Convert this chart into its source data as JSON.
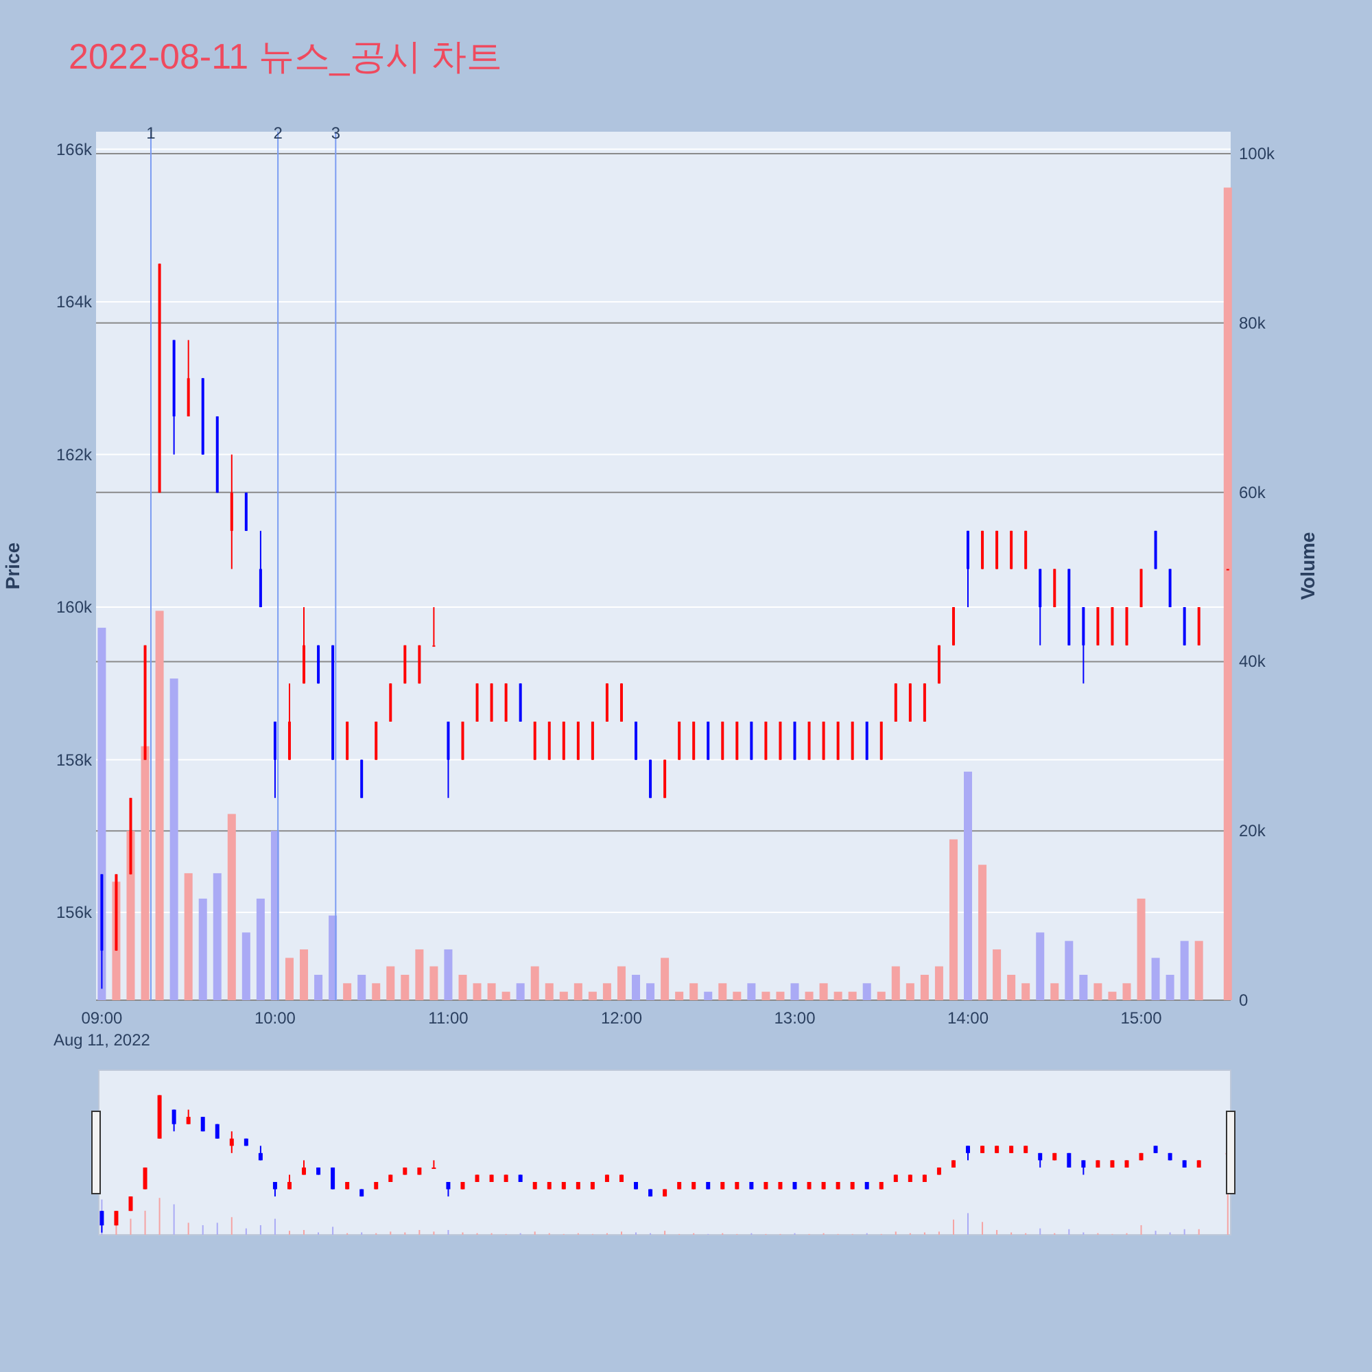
{
  "chart_data": {
    "type": "candlestick",
    "title": "2022-08-11 뉴스_공시 차트",
    "ylabel": "Price",
    "y2label": "Volume",
    "x": [
      "2022-08-11T09:00",
      "2022-08-11T09:05",
      "2022-08-11T09:10",
      "2022-08-11T09:15",
      "2022-08-11T09:20",
      "2022-08-11T09:25",
      "2022-08-11T09:30",
      "2022-08-11T09:35",
      "2022-08-11T09:40",
      "2022-08-11T09:45",
      "2022-08-11T09:50",
      "2022-08-11T09:55",
      "2022-08-11T10:00",
      "2022-08-11T10:05",
      "2022-08-11T10:10",
      "2022-08-11T10:15",
      "2022-08-11T10:20",
      "2022-08-11T10:25",
      "2022-08-11T10:30",
      "2022-08-11T10:35",
      "2022-08-11T10:40",
      "2022-08-11T10:45",
      "2022-08-11T10:50",
      "2022-08-11T10:55",
      "2022-08-11T11:00",
      "2022-08-11T11:05",
      "2022-08-11T11:10",
      "2022-08-11T11:15",
      "2022-08-11T11:20",
      "2022-08-11T11:25",
      "2022-08-11T11:30",
      "2022-08-11T11:35",
      "2022-08-11T11:40",
      "2022-08-11T11:45",
      "2022-08-11T11:50",
      "2022-08-11T11:55",
      "2022-08-11T12:00",
      "2022-08-11T12:05",
      "2022-08-11T12:10",
      "2022-08-11T12:15",
      "2022-08-11T12:20",
      "2022-08-11T12:25",
      "2022-08-11T12:30",
      "2022-08-11T12:35",
      "2022-08-11T12:40",
      "2022-08-11T12:45",
      "2022-08-11T12:50",
      "2022-08-11T12:55",
      "2022-08-11T13:00",
      "2022-08-11T13:05",
      "2022-08-11T13:10",
      "2022-08-11T13:15",
      "2022-08-11T13:20",
      "2022-08-11T13:25",
      "2022-08-11T13:30",
      "2022-08-11T13:35",
      "2022-08-11T13:40",
      "2022-08-11T13:45",
      "2022-08-11T13:50",
      "2022-08-11T13:55",
      "2022-08-11T14:00",
      "2022-08-11T14:05",
      "2022-08-11T14:10",
      "2022-08-11T14:15",
      "2022-08-11T14:20",
      "2022-08-11T14:25",
      "2022-08-11T14:30",
      "2022-08-11T14:35",
      "2022-08-11T14:40",
      "2022-08-11T14:45",
      "2022-08-11T14:50",
      "2022-08-11T14:55",
      "2022-08-11T15:00",
      "2022-08-11T15:05",
      "2022-08-11T15:10",
      "2022-08-11T15:15",
      "2022-08-11T15:20",
      "2022-08-11T15:30"
    ],
    "series": [
      {
        "colors": [
          "#0000ff",
          "#ff0000",
          "#ff0000",
          "#ff0000",
          "#ff0000",
          "#0000ff",
          "#ff0000",
          "#0000ff",
          "#0000ff",
          "#ff0000",
          "#0000ff",
          "#0000ff",
          "#0000ff",
          "#ff0000",
          "#ff0000",
          "#0000ff",
          "#0000ff",
          "#ff0000",
          "#0000ff",
          "#ff0000",
          "#ff0000",
          "#ff0000",
          "#ff0000",
          "#ff0000",
          "#0000ff",
          "#ff0000",
          "#ff0000",
          "#ff0000",
          "#ff0000",
          "#0000ff",
          "#ff0000",
          "#ff0000",
          "#ff0000",
          "#ff0000",
          "#ff0000",
          "#ff0000",
          "#ff0000",
          "#0000ff",
          "#0000ff",
          "#ff0000",
          "#ff0000",
          "#ff0000",
          "#0000ff",
          "#ff0000",
          "#ff0000",
          "#0000ff",
          "#ff0000",
          "#ff0000",
          "#0000ff",
          "#ff0000",
          "#ff0000",
          "#ff0000",
          "#ff0000",
          "#0000ff",
          "#ff0000",
          "#ff0000",
          "#ff0000",
          "#ff0000",
          "#ff0000",
          "#ff0000",
          "#0000ff",
          "#ff0000",
          "#ff0000",
          "#ff0000",
          "#ff0000",
          "#0000ff",
          "#ff0000",
          "#0000ff",
          "#0000ff",
          "#ff0000",
          "#ff0000",
          "#ff0000",
          "#ff0000",
          "#0000ff",
          "#0000ff",
          "#0000ff",
          "#ff0000",
          "#ff0000"
        ],
        "ohlc": [
          [
            156500,
            156500,
            155000,
            155500
          ],
          [
            155500,
            156500,
            155500,
            156500
          ],
          [
            156500,
            157500,
            156500,
            157500
          ],
          [
            158000,
            159500,
            158000,
            159500
          ],
          [
            161500,
            164500,
            161500,
            164500
          ],
          [
            163500,
            163500,
            162000,
            162500
          ],
          [
            162500,
            163500,
            162500,
            163000
          ],
          [
            163000,
            163000,
            162000,
            162000
          ],
          [
            162500,
            162500,
            161500,
            161500
          ],
          [
            161000,
            162000,
            160500,
            161500
          ],
          [
            161500,
            161500,
            161000,
            161000
          ],
          [
            160500,
            161000,
            160000,
            160000
          ],
          [
            158500,
            158500,
            157500,
            158000
          ],
          [
            158000,
            159000,
            158000,
            158500
          ],
          [
            159000,
            160000,
            159000,
            159500
          ],
          [
            159500,
            159500,
            159000,
            159000
          ],
          [
            159500,
            159500,
            158000,
            158000
          ],
          [
            158000,
            158500,
            158000,
            158500
          ],
          [
            158000,
            158000,
            157500,
            157500
          ],
          [
            158000,
            158500,
            158000,
            158500
          ],
          [
            158500,
            159000,
            158500,
            159000
          ],
          [
            159000,
            159500,
            159000,
            159500
          ],
          [
            159000,
            159500,
            159000,
            159500
          ],
          [
            159500,
            160000,
            159500,
            159500
          ],
          [
            158500,
            158500,
            157500,
            158000
          ],
          [
            158000,
            158500,
            158000,
            158500
          ],
          [
            158500,
            159000,
            158500,
            159000
          ],
          [
            158500,
            159000,
            158500,
            159000
          ],
          [
            158500,
            159000,
            158500,
            159000
          ],
          [
            159000,
            159000,
            158500,
            158500
          ],
          [
            158000,
            158500,
            158000,
            158500
          ],
          [
            158000,
            158500,
            158000,
            158500
          ],
          [
            158000,
            158500,
            158000,
            158500
          ],
          [
            158000,
            158500,
            158000,
            158500
          ],
          [
            158000,
            158500,
            158000,
            158500
          ],
          [
            158500,
            159000,
            158500,
            159000
          ],
          [
            158500,
            159000,
            158500,
            159000
          ],
          [
            158500,
            158500,
            158000,
            158000
          ],
          [
            158000,
            158000,
            157500,
            157500
          ],
          [
            157500,
            158000,
            157500,
            158000
          ],
          [
            158000,
            158500,
            158000,
            158500
          ],
          [
            158000,
            158500,
            158000,
            158500
          ],
          [
            158500,
            158500,
            158000,
            158000
          ],
          [
            158000,
            158500,
            158000,
            158500
          ],
          [
            158000,
            158500,
            158000,
            158500
          ],
          [
            158500,
            158500,
            158000,
            158000
          ],
          [
            158000,
            158500,
            158000,
            158500
          ],
          [
            158000,
            158500,
            158000,
            158500
          ],
          [
            158500,
            158500,
            158000,
            158000
          ],
          [
            158000,
            158500,
            158000,
            158500
          ],
          [
            158000,
            158500,
            158000,
            158500
          ],
          [
            158000,
            158500,
            158000,
            158500
          ],
          [
            158000,
            158500,
            158000,
            158500
          ],
          [
            158500,
            158500,
            158000,
            158000
          ],
          [
            158000,
            158500,
            158000,
            158500
          ],
          [
            158500,
            159000,
            158500,
            159000
          ],
          [
            158500,
            159000,
            158500,
            159000
          ],
          [
            158500,
            159000,
            158500,
            159000
          ],
          [
            159000,
            159500,
            159000,
            159500
          ],
          [
            159500,
            160000,
            159500,
            160000
          ],
          [
            161000,
            161000,
            160000,
            160500
          ],
          [
            160500,
            161000,
            160500,
            161000
          ],
          [
            160500,
            161000,
            160500,
            161000
          ],
          [
            160500,
            161000,
            160500,
            161000
          ],
          [
            160500,
            161000,
            160500,
            161000
          ],
          [
            160500,
            160500,
            159500,
            160000
          ],
          [
            160000,
            160500,
            160000,
            160500
          ],
          [
            160500,
            160500,
            159500,
            159500
          ],
          [
            160000,
            160000,
            159000,
            159500
          ],
          [
            159500,
            160000,
            159500,
            160000
          ],
          [
            159500,
            160000,
            159500,
            160000
          ],
          [
            159500,
            160000,
            159500,
            160000
          ],
          [
            160000,
            160500,
            160000,
            160500
          ],
          [
            161000,
            161000,
            160500,
            160500
          ],
          [
            160500,
            160500,
            160000,
            160000
          ],
          [
            160000,
            160000,
            159500,
            159500
          ],
          [
            159500,
            160000,
            159500,
            160000
          ],
          [
            160500,
            160500,
            160500,
            160500
          ]
        ]
      },
      {
        "type": "bar",
        "axis": "y2",
        "colors": [
          "#aaaaf5",
          "#f5a3a3",
          "#f5a3a3",
          "#f5a3a3",
          "#f5a3a3",
          "#aaaaf5",
          "#f5a3a3",
          "#aaaaf5",
          "#aaaaf5",
          "#f5a3a3",
          "#aaaaf5",
          "#aaaaf5",
          "#aaaaf5",
          "#f5a3a3",
          "#f5a3a3",
          "#aaaaf5",
          "#aaaaf5",
          "#f5a3a3",
          "#aaaaf5",
          "#f5a3a3",
          "#f5a3a3",
          "#f5a3a3",
          "#f5a3a3",
          "#f5a3a3",
          "#aaaaf5",
          "#f5a3a3",
          "#f5a3a3",
          "#f5a3a3",
          "#f5a3a3",
          "#aaaaf5",
          "#f5a3a3",
          "#f5a3a3",
          "#f5a3a3",
          "#f5a3a3",
          "#f5a3a3",
          "#f5a3a3",
          "#f5a3a3",
          "#aaaaf5",
          "#aaaaf5",
          "#f5a3a3",
          "#f5a3a3",
          "#f5a3a3",
          "#aaaaf5",
          "#f5a3a3",
          "#f5a3a3",
          "#aaaaf5",
          "#f5a3a3",
          "#f5a3a3",
          "#aaaaf5",
          "#f5a3a3",
          "#f5a3a3",
          "#f5a3a3",
          "#f5a3a3",
          "#aaaaf5",
          "#f5a3a3",
          "#f5a3a3",
          "#f5a3a3",
          "#f5a3a3",
          "#f5a3a3",
          "#f5a3a3",
          "#aaaaf5",
          "#f5a3a3",
          "#f5a3a3",
          "#f5a3a3",
          "#f5a3a3",
          "#aaaaf5",
          "#f5a3a3",
          "#aaaaf5",
          "#aaaaf5",
          "#f5a3a3",
          "#f5a3a3",
          "#f5a3a3",
          "#f5a3a3",
          "#aaaaf5",
          "#aaaaf5",
          "#aaaaf5",
          "#f5a3a3",
          "#f5a3a3"
        ],
        "values": [
          44000,
          14000,
          20000,
          30000,
          46000,
          38000,
          15000,
          12000,
          15000,
          22000,
          8000,
          12000,
          20000,
          5000,
          6000,
          3000,
          10000,
          2000,
          3000,
          2000,
          4000,
          3000,
          6000,
          4000,
          6000,
          3000,
          2000,
          2000,
          1000,
          2000,
          4000,
          2000,
          1000,
          2000,
          1000,
          2000,
          4000,
          3000,
          2000,
          5000,
          1000,
          2000,
          1000,
          2000,
          1000,
          2000,
          1000,
          1000,
          2000,
          1000,
          2000,
          1000,
          1000,
          2000,
          1000,
          4000,
          2000,
          3000,
          4000,
          19000,
          27000,
          16000,
          6000,
          3000,
          2000,
          8000,
          2000,
          7000,
          3000,
          2000,
          1000,
          2000,
          12000,
          5000,
          3000,
          7000,
          7000,
          96000
        ]
      }
    ],
    "xlim": [
      "2022-08-11T08:58",
      "2022-08-11T15:31"
    ],
    "xticks": [
      {
        "value": "2022-08-11T09:00",
        "label": "09:00"
      },
      {
        "value": "2022-08-11T10:00",
        "label": "10:00"
      },
      {
        "value": "2022-08-11T11:00",
        "label": "11:00"
      },
      {
        "value": "2022-08-11T12:00",
        "label": "12:00"
      },
      {
        "value": "2022-08-11T13:00",
        "label": "13:00"
      },
      {
        "value": "2022-08-11T14:00",
        "label": "14:00"
      },
      {
        "value": "2022-08-11T15:00",
        "label": "15:00"
      }
    ],
    "ylim": [
      154850,
      166230
    ],
    "yticks": [
      {
        "value": 156000,
        "label": "156k"
      },
      {
        "value": 158000,
        "label": "158k"
      },
      {
        "value": 160000,
        "label": "160k"
      },
      {
        "value": 162000,
        "label": "162k"
      },
      {
        "value": 164000,
        "label": "164k"
      },
      {
        "value": 166000,
        "label": "166k"
      }
    ],
    "y2lim": [
      0,
      102600
    ],
    "y2ticks": [
      0,
      {
        "value": 20000,
        "label": "20k"
      },
      {
        "value": 40000,
        "label": "40k"
      },
      {
        "value": 60000,
        "label": "60k"
      },
      {
        "value": 80000,
        "label": "80k"
      },
      {
        "value": 100000,
        "label": "100k"
      }
    ],
    "grid": true,
    "ref_lines": [
      {
        "axis": "x",
        "value": "2022-08-11T09:17",
        "label": "1",
        "color": "#7b9cf2"
      },
      {
        "axis": "x",
        "value": "2022-08-11T10:01",
        "label": "2",
        "color": "#7b9cf2"
      },
      {
        "axis": "x",
        "value": "2022-08-11T10:21",
        "label": "3",
        "color": "#7b9cf2"
      }
    ],
    "annotations": [
      "Aug 11, 2022"
    ]
  }
}
